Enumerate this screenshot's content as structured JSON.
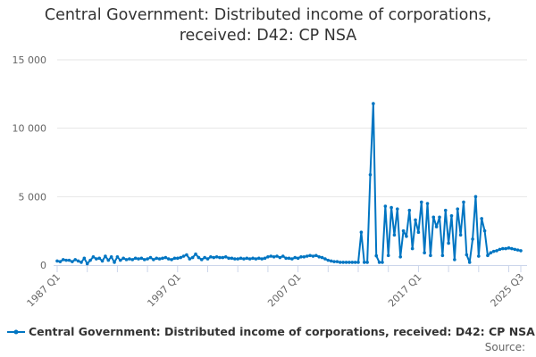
{
  "chart_data": {
    "type": "line",
    "title": "Central Government: Distributed income of corporations, received: D42: CP NSA",
    "title_lines": [
      "Central Government: Distributed income of corporations,",
      "received: D42: CP NSA"
    ],
    "x_start": "1987 Q1",
    "x_end": "2025 Q3",
    "x_tick_labels": [
      "1987 Q1",
      "1997 Q1",
      "2007 Q1",
      "2017 Q1",
      "2025 Q3"
    ],
    "y_tick_labels": [
      "0",
      "5 000",
      "10 000",
      "15 000"
    ],
    "y_ticks": [
      0,
      5000,
      10000,
      15000
    ],
    "ylim": [
      0,
      15000
    ],
    "grid": true,
    "legend_position": "bottom",
    "series": [
      {
        "name": "Central Government: Distributed income of corporations, received: D42: CP NSA",
        "color": "#0075c2",
        "values": [
          300,
          250,
          400,
          350,
          350,
          250,
          400,
          300,
          200,
          500,
          100,
          350,
          600,
          450,
          500,
          300,
          650,
          350,
          600,
          200,
          600,
          350,
          500,
          400,
          450,
          400,
          500,
          450,
          500,
          400,
          450,
          550,
          400,
          500,
          450,
          500,
          550,
          450,
          400,
          500,
          500,
          550,
          650,
          750,
          450,
          550,
          800,
          550,
          400,
          550,
          450,
          600,
          550,
          600,
          550,
          550,
          600,
          500,
          500,
          450,
          450,
          500,
          450,
          500,
          450,
          500,
          450,
          500,
          450,
          500,
          600,
          650,
          600,
          650,
          550,
          650,
          500,
          500,
          450,
          550,
          500,
          600,
          600,
          650,
          700,
          650,
          700,
          600,
          550,
          450,
          350,
          300,
          250,
          250,
          200,
          200,
          200,
          200,
          200,
          200,
          200,
          2400,
          200,
          200,
          6600,
          11800,
          680,
          200,
          200,
          4300,
          700,
          4200,
          2200,
          4100,
          600,
          2500,
          2100,
          4000,
          1200,
          3300,
          2400,
          4600,
          900,
          4500,
          700,
          3500,
          2800,
          3500,
          700,
          4000,
          1600,
          3600,
          400,
          4100,
          2200,
          4600,
          750,
          200,
          1900,
          5000,
          650,
          3400,
          2500,
          700,
          900,
          1000,
          1050,
          1150,
          1200,
          1200,
          1250,
          1200,
          1150,
          1100,
          1050
        ]
      }
    ]
  },
  "source_label": "Source:"
}
